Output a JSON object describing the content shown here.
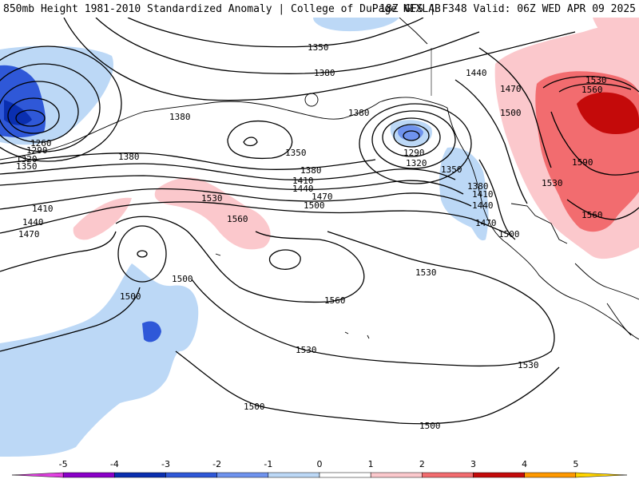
{
  "header": {
    "title": "850mb Height 1981-2010 Standardized Anomaly | College of DuPage NEXLAB",
    "run": "18Z GFS | F348 Valid: 06Z WED APR 09 2025"
  },
  "contour_labels": [
    "1350",
    "1380",
    "1440",
    "1380",
    "1470",
    "1500",
    "1530",
    "1560",
    "1380",
    "1290",
    "1320",
    "1350",
    "1380",
    "1260",
    "1290",
    "1320",
    "1350",
    "1380",
    "1410",
    "1440",
    "1470",
    "1350",
    "1380",
    "1410",
    "1440",
    "1470",
    "1500",
    "1410",
    "1440",
    "1470",
    "1500",
    "1530",
    "1560",
    "1560",
    "1500",
    "1500",
    "1530",
    "1560",
    "1530",
    "1530",
    "1500",
    "1500",
    "1590",
    "1530",
    "1560"
  ],
  "colorbar": {
    "ticks": [
      "-5",
      "-4",
      "-3",
      "-2",
      "-1",
      "0",
      "1",
      "2",
      "3",
      "4",
      "5"
    ],
    "colors": [
      "#e040e0",
      "#8a00c8",
      "#0a2fb0",
      "#2f58d8",
      "#6f93ee",
      "#bcd8f6",
      "#ffffff",
      "#fbc8cc",
      "#f26c6f",
      "#c40a0a",
      "#ff9900",
      "#ffd400"
    ]
  },
  "map": {
    "background": "#ffffff",
    "negative_light": "#bcd8f6",
    "negative_mid": "#6f93ee",
    "negative_strong": "#2f58d8",
    "positive_light": "#fbc8cc",
    "positive_mid": "#f26c6f",
    "positive_strong": "#c40a0a"
  }
}
